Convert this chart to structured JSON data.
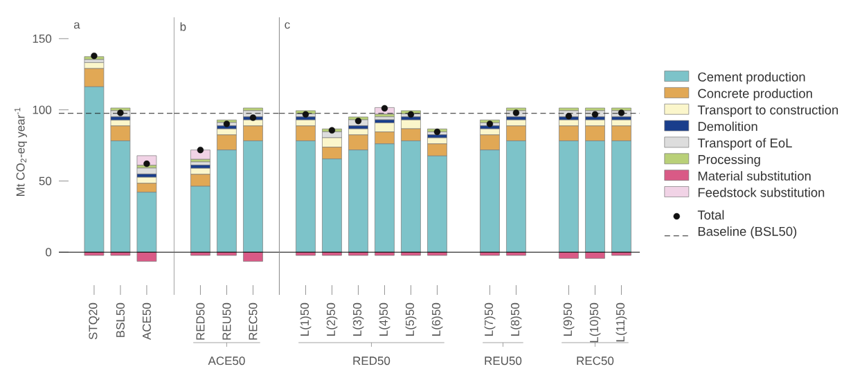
{
  "chart_data": [
    {
      "type": "bar",
      "title": "a",
      "ylabel": "Mt CO$_{2}$-eq year$^{-1}$",
      "categories": [
        "STQ20",
        "BSL50",
        "ACE50"
      ],
      "stacked": true,
      "ylim": [
        -30,
        165
      ],
      "yticks": [
        0,
        50,
        100,
        150
      ],
      "marker": "circle",
      "series": [
        {
          "color": "#7dc3c9",
          "values": [
            116.2,
            78.2,
            42.1
          ]
        },
        {
          "color": "#e1a855",
          "values": [
            12.8,
            10.5,
            6.3
          ]
        },
        {
          "color": "#fbf6cb",
          "values": [
            4.2,
            4.0,
            4.2
          ]
        },
        {
          "color": "#1a3e8c",
          "values": [
            0,
            2.4,
            2.3
          ]
        },
        {
          "color": "#dddddd",
          "values": [
            2.1,
            4.3,
            4.2
          ]
        },
        {
          "color": "#b9d078",
          "values": [
            2.1,
            1.9,
            1.9
          ]
        },
        {
          "color": "#d95a86",
          "values": [
            -2.3,
            -2.3,
            -6.5
          ]
        },
        {
          "color": "#f1d3e6",
          "values": [
            0,
            0,
            6.8
          ]
        },
        {
          "type": "scatter",
          "color": "#111111",
          "values": [
            137.9,
            97.9,
            62.1
          ]
        }
      ],
      "ref_lines": [
        {
          "axis": "y",
          "value": 97.5,
          "color": "#222222",
          "line_style": "dashed"
        }
      ]
    },
    {
      "type": "bar",
      "title": "b",
      "annotations": [
        "ACE50"
      ],
      "categories": [
        "RED50",
        "REU50",
        "REC50"
      ],
      "stacked": true,
      "ylim": [
        -30,
        165
      ],
      "tick_labels": "x",
      "marker": "circle",
      "series": [
        {
          "color": "#7dc3c9",
          "values": [
            46.3,
            71.8,
            78.2
          ]
        },
        {
          "color": "#e1a855",
          "values": [
            8.4,
            10.6,
            10.5
          ]
        },
        {
          "color": "#fbf6cb",
          "values": [
            4.2,
            4.2,
            4.2
          ]
        },
        {
          "color": "#1a3e8c",
          "values": [
            2.3,
            2.2,
            2.2
          ]
        },
        {
          "color": "#dddddd",
          "values": [
            2.2,
            2.3,
            4.3
          ]
        },
        {
          "color": "#b9d078",
          "values": [
            1.8,
            1.8,
            1.9
          ]
        },
        {
          "color": "#d95a86",
          "values": [
            -2.3,
            -2.3,
            -6.5
          ]
        },
        {
          "color": "#f1d3e6",
          "values": [
            6.6,
            0,
            0
          ]
        },
        {
          "type": "scatter",
          "color": "#111111",
          "values": [
            71.8,
            90.1,
            94.5
          ]
        }
      ],
      "ref_lines": [
        {
          "axis": "y",
          "value": 97.5,
          "color": "#222222",
          "line_style": "dashed"
        }
      ]
    },
    {
      "type": "bar",
      "title": "c",
      "annotations": [
        "RED50",
        "REU50",
        "REC50"
      ],
      "categories": [
        "L(1)50",
        "L(2)50",
        "L(3)50",
        "L(4)50",
        "L(5)50",
        "L(6)50",
        null,
        "L(7)50",
        "L(8)50",
        null,
        "L(9)50",
        "L(10)50",
        "L(11)50"
      ],
      "stacked": true,
      "ylim": [
        -30,
        165
      ],
      "tick_labels": "x",
      "marker": "circle",
      "legend": "right",
      "series": [
        {
          "name": "Cement production",
          "color": "#7dc3c9",
          "values": [
            78.2,
            65.5,
            71.8,
            76.1,
            78.2,
            67.6,
            null,
            71.8,
            78.2,
            null,
            78.2,
            78.2,
            78.2
          ]
        },
        {
          "name": "Concrete production",
          "color": "#e1a855",
          "values": [
            10.5,
            8.3,
            10.6,
            8.4,
            8.5,
            8.5,
            null,
            10.6,
            10.5,
            null,
            10.5,
            10.5,
            10.5
          ]
        },
        {
          "name": "Transport to construction",
          "color": "#fbf6cb",
          "values": [
            4.2,
            6.6,
            4.2,
            6.3,
            6.2,
            4.2,
            null,
            4.2,
            4.2,
            null,
            4.2,
            4.2,
            4.2
          ]
        },
        {
          "name": "Demolition",
          "color": "#1a3e8c",
          "values": [
            2.2,
            0,
            2.2,
            2.2,
            2.2,
            2.2,
            null,
            2.2,
            2.2,
            null,
            2.2,
            2.2,
            2.2
          ]
        },
        {
          "name": "Transport of EoL",
          "color": "#dddddd",
          "values": [
            2.1,
            4.2,
            4.2,
            2.1,
            2.1,
            2.0,
            null,
            2.1,
            4.3,
            null,
            4.3,
            4.3,
            4.3
          ]
        },
        {
          "name": "Processing",
          "color": "#b9d078",
          "values": [
            2.2,
            2.0,
            2.0,
            1.8,
            2.2,
            2.1,
            null,
            2.0,
            1.9,
            null,
            1.9,
            1.9,
            1.9
          ]
        },
        {
          "name": "Material substitution",
          "color": "#d95a86",
          "values": [
            -2.3,
            -2.3,
            -2.3,
            -2.3,
            -2.3,
            -2.3,
            null,
            -2.3,
            -2.3,
            null,
            -4.4,
            -4.4,
            -2.3
          ]
        },
        {
          "name": "Feedstock substitution",
          "color": "#f1d3e6",
          "values": [
            0,
            0,
            0,
            4.7,
            0,
            0,
            null,
            0,
            0,
            null,
            0,
            0,
            0
          ]
        },
        {
          "name": "Total",
          "type": "scatter",
          "color": "#111111",
          "values": [
            96.8,
            85.6,
            92.2,
            101.1,
            96.8,
            84.5,
            null,
            90.1,
            97.9,
            null,
            95.6,
            96.8,
            97.9
          ]
        }
      ],
      "ref_lines": [
        {
          "axis": "y",
          "value": 97.5,
          "color": "#222222",
          "line_style": "dashed",
          "label": "Baseline (BSL50)"
        }
      ]
    }
  ]
}
